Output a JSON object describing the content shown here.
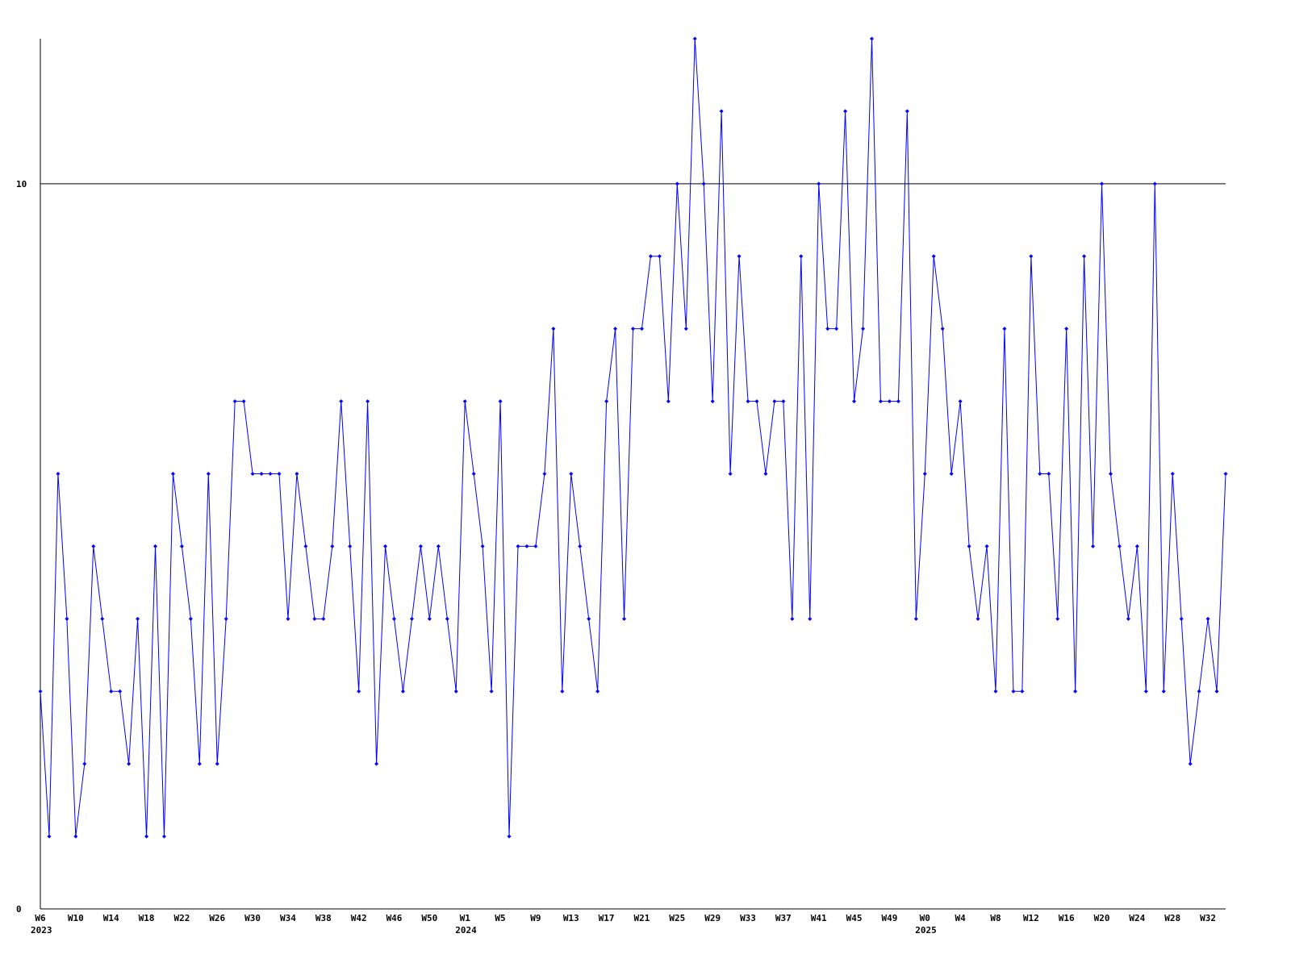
{
  "chart_data": {
    "type": "line",
    "categories": [
      "W6",
      null,
      null,
      null,
      "W10",
      null,
      null,
      null,
      "W14",
      null,
      null,
      null,
      "W18",
      null,
      null,
      null,
      "W22",
      null,
      null,
      null,
      "W26",
      null,
      null,
      null,
      "W30",
      null,
      null,
      null,
      "W34",
      null,
      null,
      null,
      "W38",
      null,
      null,
      null,
      "W42",
      null,
      null,
      null,
      "W46",
      null,
      null,
      null,
      "W50",
      null,
      null,
      null,
      "W1",
      null,
      null,
      null,
      "W5",
      null,
      null,
      null,
      "W9",
      null,
      null,
      null,
      "W13",
      null,
      null,
      null,
      "W17",
      null,
      null,
      null,
      "W21",
      null,
      null,
      null,
      "W25",
      null,
      null,
      null,
      "W29",
      null,
      null,
      null,
      "W33",
      null,
      null,
      null,
      "W37",
      null,
      null,
      null,
      "W41",
      null,
      null,
      null,
      "W45",
      null,
      null,
      null,
      "W49",
      null,
      null,
      null,
      "W0",
      null,
      null,
      null,
      "W4",
      null,
      null,
      null,
      "W8",
      null,
      null,
      null,
      "W12",
      null,
      null,
      null,
      "W16",
      null,
      null,
      null,
      "W20",
      null,
      null,
      null,
      "W24",
      null,
      null,
      null,
      "W28",
      null,
      null,
      null,
      "W32",
      null,
      null
    ],
    "year_labels": [
      {
        "index": 0,
        "label": "2023"
      },
      {
        "index": 48,
        "label": "2024"
      },
      {
        "index": 100,
        "label": "2025"
      }
    ],
    "values": [
      3,
      1,
      6,
      4,
      1,
      2,
      5,
      4,
      3,
      3,
      2,
      4,
      1,
      5,
      1,
      6,
      5,
      4,
      2,
      6,
      2,
      4,
      7,
      7,
      6,
      6,
      6,
      6,
      4,
      6,
      5,
      4,
      4,
      5,
      7,
      5,
      3,
      7,
      2,
      5,
      4,
      3,
      4,
      5,
      4,
      5,
      4,
      3,
      7,
      6,
      5,
      3,
      7,
      1,
      5,
      5,
      5,
      6,
      8,
      3,
      6,
      5,
      4,
      3,
      7,
      8,
      4,
      8,
      8,
      9,
      9,
      7,
      10,
      8,
      12,
      10,
      7,
      11,
      6,
      9,
      7,
      7,
      6,
      7,
      7,
      4,
      9,
      4,
      10,
      8,
      8,
      11,
      7,
      8,
      12,
      7,
      7,
      7,
      11,
      4,
      6,
      9,
      8,
      6,
      7,
      5,
      4,
      5,
      3,
      8,
      3,
      3,
      9,
      6,
      6,
      4,
      8,
      3,
      9,
      5,
      10,
      6,
      5,
      4,
      5,
      3,
      10,
      3,
      6,
      4,
      2,
      3,
      4,
      3,
      6
    ],
    "color": "#0000ff",
    "ylim": [
      0,
      12
    ],
    "yticks": [
      0,
      10
    ],
    "grid": true
  }
}
